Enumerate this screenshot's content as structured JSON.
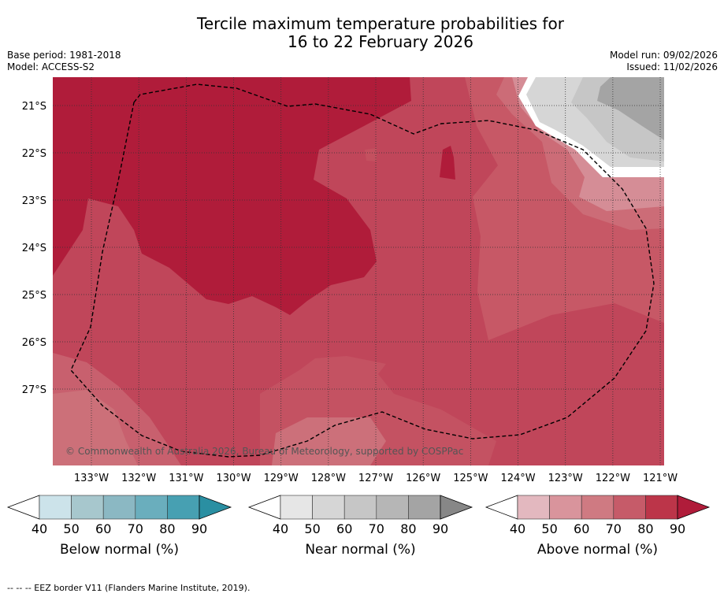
{
  "title_line1": "Tercile maximum temperature probabilities for",
  "title_line2": "16 to 22 February 2026",
  "base_period": "Base period: 1981-2018",
  "model": "Model: ACCESS-S2",
  "model_run": "Model run: 09/02/2026",
  "issued": "Issued: 11/02/2026",
  "copyright": "© Commonwealth of Australia 2026, Bureau of Meteorology, supported by COSPPac",
  "lat_labels": [
    "21°S",
    "22°S",
    "23°S",
    "24°S",
    "25°S",
    "26°S",
    "27°S"
  ],
  "lon_labels": [
    "133°W",
    "132°W",
    "131°W",
    "130°W",
    "129°W",
    "128°W",
    "127°W",
    "126°W",
    "125°W",
    "124°W",
    "123°W",
    "122°W",
    "121°W"
  ],
  "colorbars": [
    {
      "label": "Below normal (%)",
      "ticks": [
        "40",
        "50",
        "60",
        "70",
        "80",
        "90"
      ],
      "colors": [
        "#cce3ea",
        "#a7c7cd",
        "#8bb8c3",
        "#6aaebd",
        "#47a0b2",
        "#2a8fa2"
      ]
    },
    {
      "label": "Near normal (%)",
      "ticks": [
        "40",
        "50",
        "60",
        "70",
        "80",
        "90"
      ],
      "colors": [
        "#e6e6e6",
        "#d6d6d6",
        "#c6c6c6",
        "#b6b6b6",
        "#a4a4a4",
        "#878787"
      ]
    },
    {
      "label": "Above normal (%)",
      "ticks": [
        "40",
        "50",
        "60",
        "70",
        "80",
        "90"
      ],
      "colors": [
        "#e3b8bf",
        "#d9949c",
        "#cf7a82",
        "#c65b69",
        "#bc3549",
        "#b01c3a"
      ]
    }
  ],
  "footer": "--  --  -- EEZ border V11 (Flanders Marine Institute, 2019)."
}
